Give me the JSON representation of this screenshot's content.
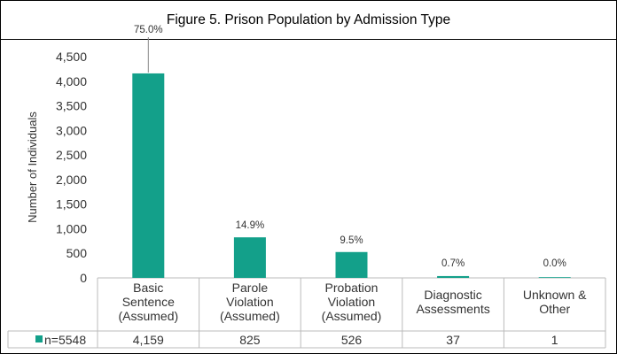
{
  "chart_data": {
    "type": "bar",
    "title": "Figure 5. Prison Population by Admission Type",
    "ylabel": "Number of Individuals",
    "xlabel": "",
    "ylim": [
      0,
      4500
    ],
    "yticks": [
      0,
      500,
      1000,
      1500,
      2000,
      2500,
      3000,
      3500,
      4000,
      4500
    ],
    "ytick_labels": [
      "0",
      "500",
      "1,000",
      "1,500",
      "2,000",
      "2,500",
      "3,000",
      "3,500",
      "4,000",
      "4,500"
    ],
    "grid": false,
    "bar_color": "#13a08a",
    "categories": [
      [
        "Basic",
        "Sentence",
        "(Assumed)"
      ],
      [
        "Parole",
        "Violation",
        "(Assumed)"
      ],
      [
        "Probation",
        "Violation",
        "(Assumed)"
      ],
      [
        "Diagnostic",
        "Assessments"
      ],
      [
        "Unknown &",
        "Other"
      ]
    ],
    "series": [
      {
        "name": "n=5548",
        "values": [
          4159,
          825,
          526,
          37,
          1
        ],
        "value_labels": [
          "4,159",
          "825",
          "526",
          "37",
          "1"
        ],
        "data_labels": [
          "75.0%",
          "14.9%",
          "9.5%",
          "0.7%",
          "0.0%"
        ]
      }
    ],
    "legend": "data table"
  }
}
